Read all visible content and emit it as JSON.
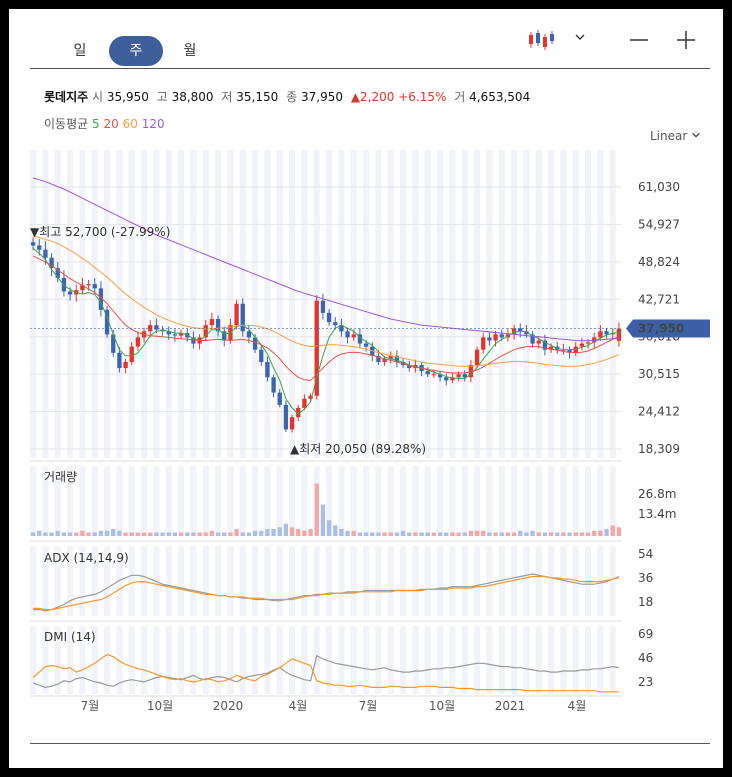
{
  "tabs": [
    {
      "label": "일"
    },
    {
      "label": "주",
      "active": true
    },
    {
      "label": "월"
    }
  ],
  "stock": {
    "name": "롯데지주",
    "open_label": "시",
    "open": "35,950",
    "high_label": "고",
    "high": "38,800",
    "low_label": "저",
    "low": "35,150",
    "close_label": "종",
    "close": "37,950",
    "change": "▲2,200",
    "change_pct": "+6.15%",
    "volume_label": "거",
    "volume": "4,653,504"
  },
  "ma_legend": {
    "label": "이동평균",
    "items": [
      {
        "name": "5",
        "color": "#3aa745"
      },
      {
        "name": "20",
        "color": "#e5534b"
      },
      {
        "name": "60",
        "color": "#f5a041"
      },
      {
        "name": "120",
        "color": "#9b59d6"
      }
    ]
  },
  "scale_label": "Linear",
  "current_price_label": "37,950",
  "colors": {
    "up": "#e3342f",
    "down": "#3d64b0",
    "ma5": "#3aa745",
    "ma20": "#e5534b",
    "ma60": "#f5a041",
    "ma120": "#9b59d6",
    "accent": "#3f5f9a"
  },
  "icons": [
    "candlestick-icon",
    "chevron-down-icon",
    "minus-icon",
    "plus-icon"
  ],
  "chart_data": [
    {
      "type": "candlestick",
      "title": "",
      "ylim": [
        18309,
        61030
      ],
      "yticks": [
        "61,030",
        "54,927",
        "48,824",
        "42,721",
        "36,618",
        "30,515",
        "24,412",
        "18,309"
      ],
      "x_ticks": [
        "7월",
        "10월",
        "2020",
        "4월",
        "7월",
        "10월",
        "2021",
        "4월"
      ],
      "annotations": {
        "high": "▼최고 52,700 (-27.99%)",
        "low": "▲최저 20,050 (89.28%)"
      },
      "close": [
        51500,
        50800,
        49500,
        47800,
        46200,
        44000,
        43500,
        44200,
        45000,
        45200,
        44500,
        41000,
        37000,
        34000,
        31500,
        32500,
        35000,
        36500,
        37500,
        38500,
        37800,
        37500,
        37000,
        36800,
        37200,
        36500,
        35500,
        36500,
        38500,
        39500,
        37500,
        36000,
        38500,
        42000,
        37500,
        36500,
        34500,
        32500,
        30000,
        27500,
        25500,
        21500,
        23500,
        25000,
        26500,
        27000,
        42500,
        40500,
        39000,
        38500,
        37500,
        36500,
        37000,
        35500,
        35000,
        33500,
        32500,
        33000,
        33500,
        32500,
        32000,
        31500,
        32000,
        31000,
        30500,
        30500,
        30000,
        29500,
        30000,
        30500,
        30000,
        32000,
        34500,
        36500,
        36000,
        37000,
        36500,
        37000,
        38000,
        37500,
        37000,
        35500,
        36000,
        34500,
        35000,
        34500,
        34500,
        34000,
        35000,
        35500,
        35700,
        36500,
        37500,
        37000,
        37200,
        37950
      ],
      "ma5": [
        51000,
        50200,
        49200,
        47600,
        46300,
        45000,
        44300,
        43800,
        43600,
        43800,
        43500,
        42200,
        39800,
        37000,
        34500,
        33500,
        33500,
        34000,
        35300,
        36800,
        37500,
        37700,
        37500,
        37200,
        37200,
        36900,
        36300,
        36000,
        36800,
        37800,
        37700,
        37100,
        37200,
        38300,
        38500,
        37800,
        36500,
        35300,
        33800,
        31500,
        29500,
        26500,
        25000,
        24000,
        24800,
        26000,
        30000,
        33500,
        36500,
        38000,
        38500,
        38000,
        37500,
        36500,
        35800,
        35200,
        34200,
        33300,
        33000,
        32800,
        32400,
        32000,
        31800,
        31500,
        31200,
        30800,
        30500,
        30100,
        29900,
        29800,
        29800,
        30500,
        31600,
        33000,
        34200,
        35500,
        36200,
        36700,
        37300,
        37500,
        37400,
        36800,
        36300,
        35700,
        35200,
        34700,
        34500,
        34500,
        34600,
        34900,
        35200,
        35800,
        36400,
        36900,
        37200,
        37300
      ],
      "ma20": [
        49800,
        49300,
        48800,
        48200,
        47500,
        46800,
        46100,
        45500,
        45000,
        44400,
        43800,
        43000,
        42000,
        40800,
        39600,
        38500,
        37800,
        37300,
        37000,
        36800,
        36700,
        36600,
        36500,
        36400,
        36300,
        36200,
        36100,
        36000,
        36000,
        36100,
        36200,
        36100,
        36000,
        36100,
        36200,
        36000,
        35700,
        35300,
        34800,
        34000,
        33000,
        31800,
        30800,
        30000,
        29600,
        29500,
        30500,
        31500,
        32500,
        33300,
        33800,
        34000,
        34100,
        34000,
        33800,
        33600,
        33300,
        33000,
        32800,
        32500,
        32200,
        31900,
        31700,
        31500,
        31300,
        31100,
        31000,
        30800,
        30700,
        30700,
        30700,
        30900,
        31200,
        31700,
        32300,
        32900,
        33500,
        34000,
        34500,
        34800,
        35000,
        35000,
        35000,
        34800,
        34600,
        34400,
        34200,
        34100,
        34000,
        34100,
        34300,
        34700,
        35200,
        35700,
        36200,
        36700
      ],
      "ma60": [
        53000,
        52800,
        52500,
        52200,
        51800,
        51300,
        50700,
        50100,
        49400,
        48700,
        47900,
        47100,
        46300,
        45400,
        44500,
        43600,
        42800,
        42100,
        41400,
        40800,
        40200,
        39700,
        39300,
        38900,
        38600,
        38300,
        38100,
        38000,
        37900,
        37900,
        38000,
        38100,
        38200,
        38400,
        38500,
        38500,
        38400,
        38200,
        37900,
        37500,
        37000,
        36400,
        35900,
        35500,
        35200,
        35000,
        35100,
        35200,
        35300,
        35300,
        35200,
        35100,
        35000,
        34800,
        34600,
        34300,
        34000,
        33800,
        33500,
        33300,
        33100,
        32900,
        32700,
        32500,
        32300,
        32200,
        32100,
        32000,
        31900,
        31800,
        31800,
        31800,
        31900,
        32000,
        32100,
        32300,
        32400,
        32500,
        32600,
        32600,
        32500,
        32400,
        32300,
        32100,
        32000,
        31900,
        31800,
        31800,
        31800,
        31900,
        32100,
        32300,
        32600,
        32900,
        33300,
        33700
      ],
      "ma120": [
        62500,
        62200,
        61900,
        61500,
        61100,
        60700,
        60200,
        59700,
        59200,
        58700,
        58200,
        57700,
        57200,
        56700,
        56200,
        55700,
        55200,
        54700,
        54200,
        53700,
        53200,
        52800,
        52400,
        52000,
        51600,
        51200,
        50800,
        50400,
        50000,
        49600,
        49200,
        48800,
        48400,
        48000,
        47600,
        47200,
        46800,
        46400,
        46000,
        45600,
        45200,
        44800,
        44400,
        44000,
        43700,
        43400,
        43100,
        42800,
        42500,
        42200,
        41900,
        41600,
        41300,
        41000,
        40700,
        40400,
        40100,
        39800,
        39500,
        39300,
        39100,
        38900,
        38700,
        38500,
        38400,
        38300,
        38200,
        38100,
        38000,
        37900,
        37800,
        37700,
        37600,
        37500,
        37400,
        37300,
        37200,
        37100,
        37000,
        36900,
        36800,
        36700,
        36600,
        36500,
        36400,
        36300,
        36200,
        36100,
        36000,
        35950,
        35950,
        36000,
        36100,
        36200,
        36300,
        36400
      ]
    },
    {
      "type": "bar",
      "title": "거래량",
      "yticks": [
        "26.8m",
        "13.4m"
      ],
      "ylim": [
        0,
        40
      ],
      "values": [
        2,
        3,
        2,
        2,
        3,
        2,
        2,
        2,
        3,
        2,
        2,
        3,
        3,
        4,
        3,
        2,
        2,
        2,
        2,
        2,
        2,
        2,
        2,
        2,
        2,
        2,
        2,
        2,
        2,
        3,
        2,
        2,
        2,
        4,
        2,
        2,
        3,
        3,
        4,
        4,
        5,
        7,
        5,
        4,
        3,
        4,
        30,
        18,
        9,
        6,
        4,
        3,
        3,
        2,
        2,
        2,
        2,
        2,
        2,
        2,
        3,
        2,
        2,
        2,
        2,
        2,
        2,
        2,
        2,
        2,
        2,
        3,
        3,
        3,
        2,
        2,
        2,
        2,
        2,
        3,
        2,
        3,
        2,
        2,
        2,
        2,
        2,
        2,
        2,
        2,
        2,
        3,
        3,
        4,
        6,
        5
      ]
    },
    {
      "type": "line",
      "title": "ADX (14,14,9)",
      "yticks": [
        "54",
        "36",
        "18"
      ],
      "ylim": [
        5,
        60
      ],
      "series": [
        {
          "values": [
            10,
            10,
            9,
            10,
            12,
            14,
            17,
            19,
            20,
            21,
            22,
            24,
            27,
            30,
            33,
            35,
            37,
            37,
            36,
            34,
            32,
            30,
            29,
            28,
            27,
            26,
            25,
            24,
            23,
            22,
            21,
            21,
            20,
            20,
            19,
            19,
            18,
            18,
            18,
            17,
            17,
            18,
            19,
            20,
            21,
            21,
            22,
            22,
            23,
            23,
            23,
            24,
            24,
            24,
            25,
            25,
            25,
            25,
            25,
            25,
            25,
            25,
            25,
            26,
            26,
            26,
            27,
            27,
            28,
            28,
            28,
            28,
            29,
            30,
            31,
            32,
            33,
            34,
            35,
            36,
            37,
            38,
            37,
            36,
            35,
            34,
            33,
            32,
            31,
            30,
            30,
            30,
            31,
            32,
            34,
            36
          ]
        },
        {
          "values": [
            11,
            11,
            10,
            10,
            11,
            12,
            13,
            14,
            15,
            16,
            17,
            18,
            20,
            23,
            26,
            29,
            31,
            32,
            32,
            31,
            30,
            29,
            28,
            27,
            26,
            25,
            24,
            23,
            22,
            22,
            21,
            21,
            20,
            20,
            20,
            19,
            19,
            19,
            18,
            18,
            18,
            18,
            18,
            19,
            20,
            21,
            21,
            22,
            22,
            23,
            23,
            23,
            23,
            24,
            24,
            24,
            24,
            24,
            24,
            25,
            25,
            25,
            25,
            25,
            26,
            26,
            26,
            26,
            27,
            27,
            27,
            27,
            28,
            28,
            29,
            30,
            31,
            32,
            33,
            34,
            35,
            36,
            36,
            36,
            35,
            35,
            34,
            34,
            33,
            32,
            32,
            32,
            32,
            33,
            34,
            35
          ]
        }
      ]
    },
    {
      "type": "line",
      "title": "DMI (14)",
      "yticks": [
        "69",
        "46",
        "23"
      ],
      "ylim": [
        10,
        72
      ],
      "series": [
        {
          "values": [
            20,
            18,
            16,
            17,
            19,
            22,
            21,
            24,
            25,
            23,
            21,
            20,
            18,
            17,
            20,
            22,
            23,
            22,
            21,
            23,
            25,
            26,
            25,
            24,
            23,
            25,
            27,
            24,
            23,
            25,
            26,
            25,
            23,
            21,
            24,
            26,
            27,
            28,
            29,
            32,
            34,
            30,
            27,
            25,
            23,
            22,
            45,
            42,
            40,
            38,
            37,
            36,
            35,
            34,
            33,
            32,
            33,
            34,
            32,
            31,
            30,
            30,
            31,
            31,
            32,
            33,
            33,
            34,
            34,
            35,
            36,
            37,
            38,
            38,
            37,
            36,
            35,
            35,
            34,
            34,
            33,
            32,
            31,
            31,
            30,
            30,
            31,
            31,
            31,
            32,
            32,
            33,
            33,
            34,
            35,
            34
          ]
        },
        {
          "values": [
            25,
            30,
            35,
            36,
            35,
            33,
            34,
            30,
            32,
            35,
            38,
            42,
            46,
            44,
            40,
            37,
            35,
            33,
            32,
            30,
            28,
            26,
            24,
            23,
            24,
            22,
            21,
            22,
            24,
            23,
            21,
            22,
            24,
            27,
            25,
            23,
            22,
            26,
            28,
            31,
            34,
            38,
            42,
            40,
            38,
            36,
            22,
            20,
            19,
            18,
            18,
            17,
            17,
            18,
            17,
            16,
            16,
            16,
            17,
            17,
            16,
            16,
            16,
            17,
            17,
            17,
            16,
            16,
            16,
            15,
            15,
            15,
            14,
            14,
            14,
            14,
            14,
            14,
            14,
            14,
            13,
            13,
            13,
            13,
            13,
            13,
            13,
            13,
            13,
            13,
            13,
            13,
            12,
            12,
            12,
            12
          ]
        }
      ]
    }
  ]
}
